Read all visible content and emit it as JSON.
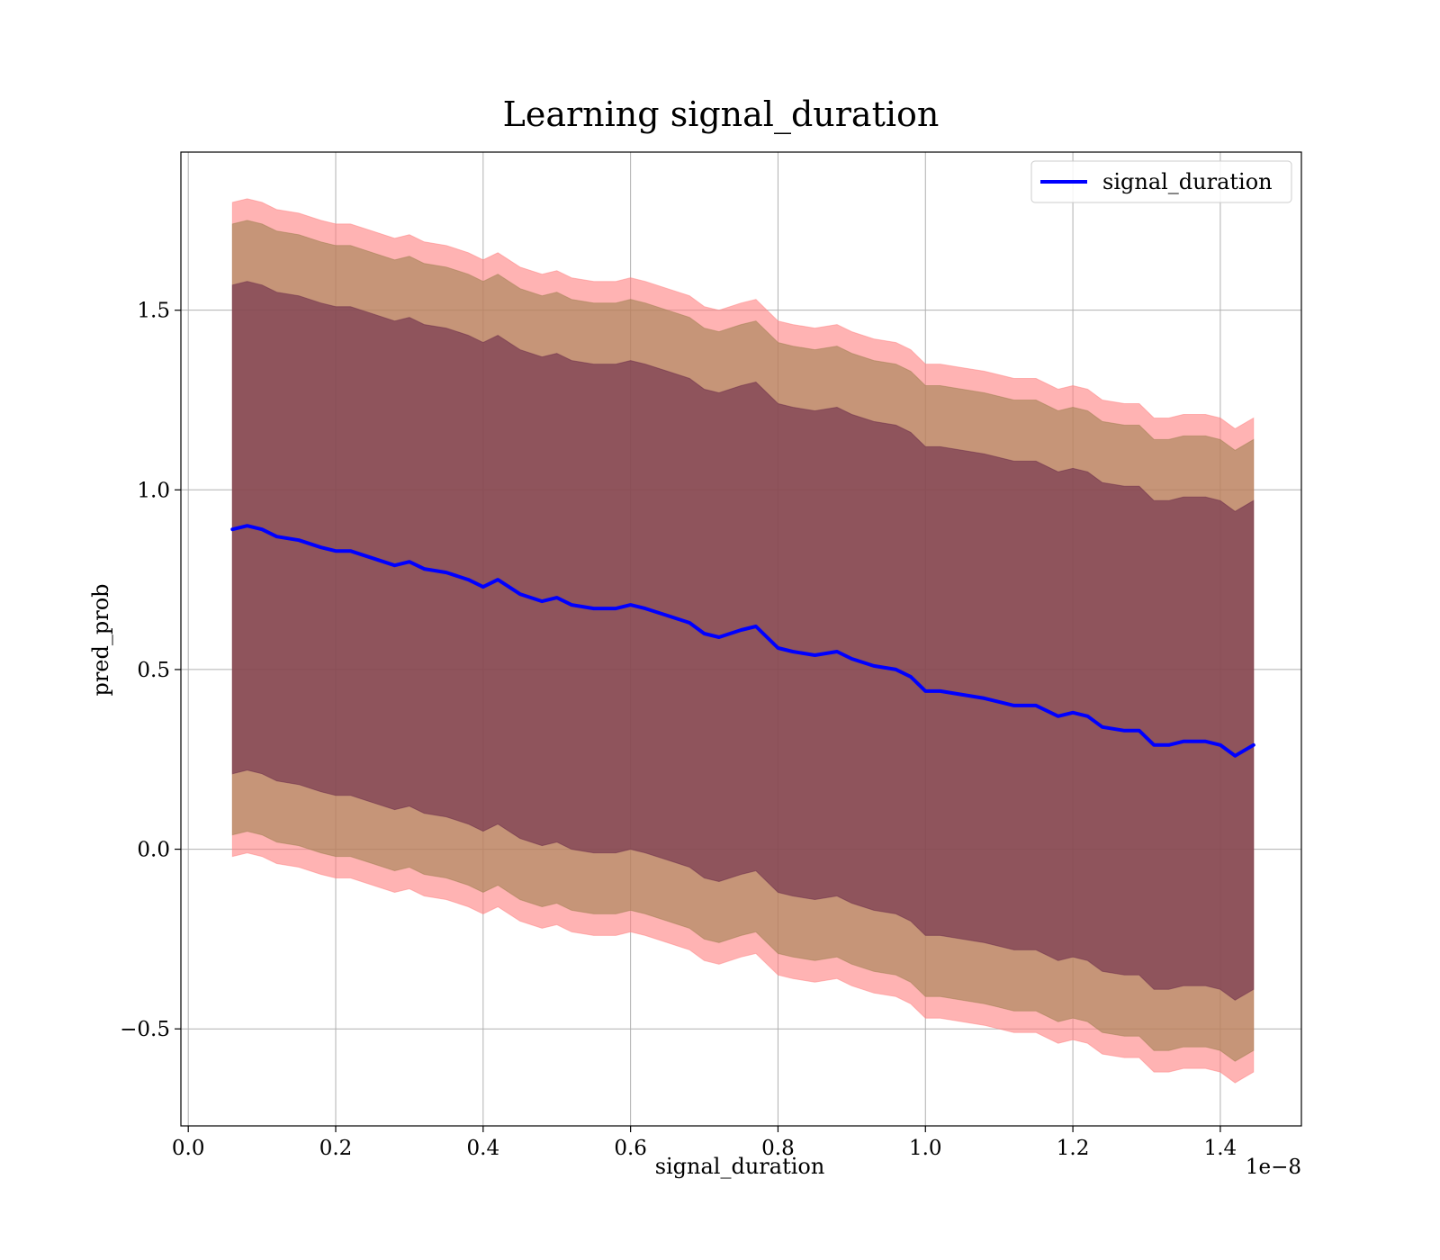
{
  "chart_data": {
    "type": "line",
    "title": "Learning signal_duration",
    "xlabel": "signal_duration",
    "ylabel": "pred_prob",
    "x_offset_label": "1e−8",
    "xlim": [
      -0.01,
      1.51
    ],
    "ylim": [
      -0.77,
      1.94
    ],
    "x_ticks": [
      0.0,
      0.2,
      0.4,
      0.6,
      0.8,
      1.0,
      1.2,
      1.4
    ],
    "x_tick_labels": [
      "0.0",
      "0.2",
      "0.4",
      "0.6",
      "0.8",
      "1.0",
      "1.2",
      "1.4"
    ],
    "y_ticks": [
      -0.5,
      0.0,
      0.5,
      1.0,
      1.5
    ],
    "y_tick_labels": [
      "−0.5",
      "0.0",
      "0.5",
      "1.0",
      "1.5"
    ],
    "grid": true,
    "legend": {
      "position": "top-right",
      "entries": [
        "signal_duration"
      ]
    },
    "colors": {
      "line": "#0000ff",
      "band_outer": "#ff8080",
      "band_middle": "#a08050",
      "band_inner": "#6a2a4a"
    },
    "series": [
      {
        "name": "signal_duration",
        "x": [
          0.06,
          0.08,
          0.1,
          0.12,
          0.15,
          0.18,
          0.2,
          0.22,
          0.25,
          0.28,
          0.3,
          0.32,
          0.35,
          0.38,
          0.4,
          0.42,
          0.45,
          0.48,
          0.5,
          0.52,
          0.55,
          0.58,
          0.6,
          0.62,
          0.65,
          0.68,
          0.7,
          0.72,
          0.75,
          0.77,
          0.8,
          0.82,
          0.85,
          0.88,
          0.9,
          0.93,
          0.96,
          0.98,
          1.0,
          1.02,
          1.05,
          1.08,
          1.1,
          1.12,
          1.15,
          1.18,
          1.2,
          1.22,
          1.24,
          1.27,
          1.29,
          1.31,
          1.33,
          1.35,
          1.38,
          1.4,
          1.42,
          1.445
        ],
        "y": [
          0.89,
          0.9,
          0.89,
          0.87,
          0.86,
          0.84,
          0.83,
          0.83,
          0.81,
          0.79,
          0.8,
          0.78,
          0.77,
          0.75,
          0.73,
          0.75,
          0.71,
          0.69,
          0.7,
          0.68,
          0.67,
          0.67,
          0.68,
          0.67,
          0.65,
          0.63,
          0.6,
          0.59,
          0.61,
          0.62,
          0.56,
          0.55,
          0.54,
          0.55,
          0.53,
          0.51,
          0.5,
          0.48,
          0.44,
          0.44,
          0.43,
          0.42,
          0.41,
          0.4,
          0.4,
          0.37,
          0.38,
          0.37,
          0.34,
          0.33,
          0.33,
          0.29,
          0.29,
          0.3,
          0.3,
          0.29,
          0.26,
          0.29
        ]
      }
    ],
    "bands": [
      {
        "role": "outer",
        "half_width": 0.91,
        "alpha": 0.6
      },
      {
        "role": "middle",
        "half_width": 0.85,
        "alpha": 0.6
      },
      {
        "role": "inner",
        "half_width": 0.68,
        "alpha": 0.6
      }
    ]
  }
}
